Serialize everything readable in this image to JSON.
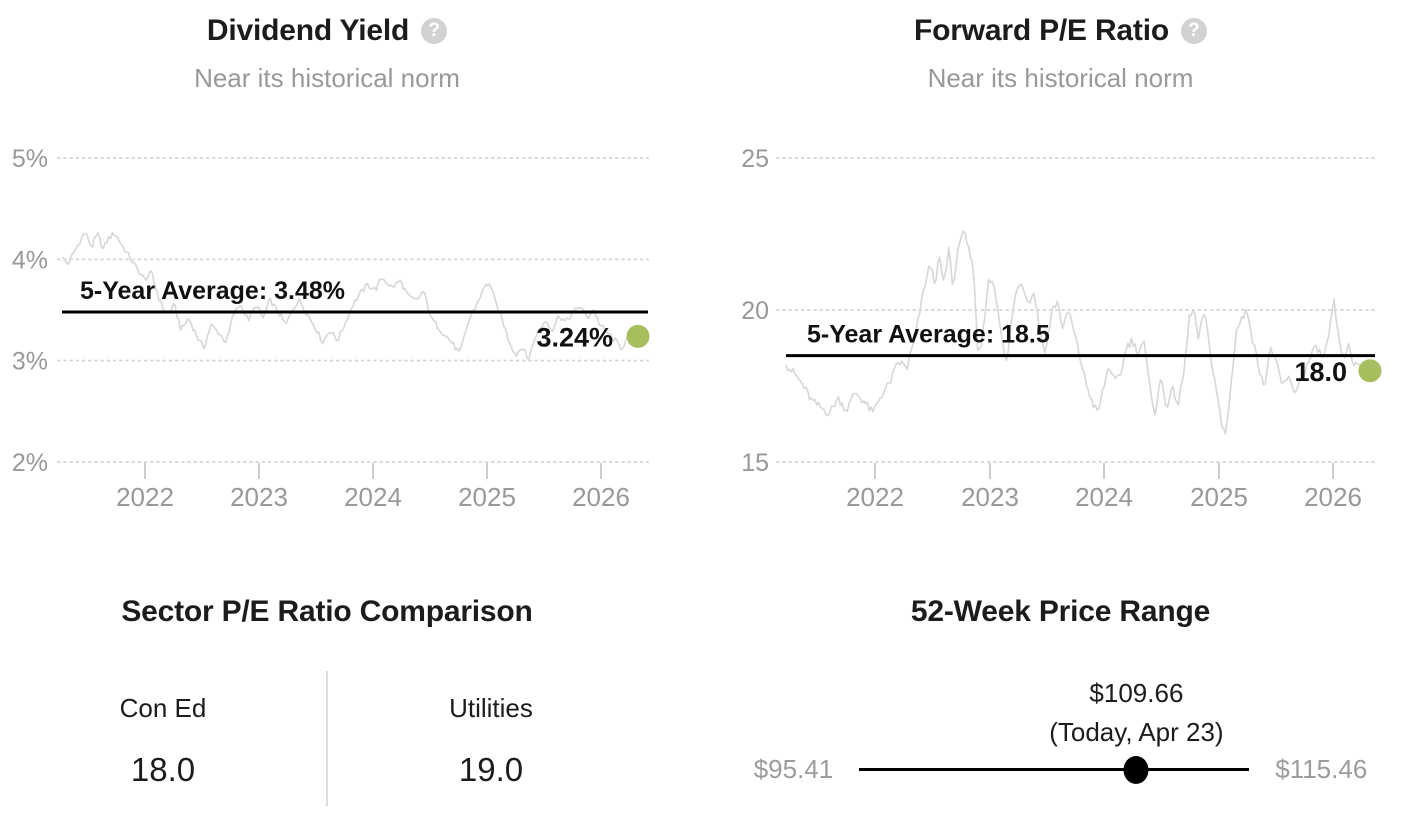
{
  "panels": {
    "dividend": {
      "title": "Dividend Yield",
      "subtitle": "Near its historical norm"
    },
    "pe": {
      "title": "Forward P/E Ratio",
      "subtitle": "Near its historical norm"
    },
    "sector": {
      "title": "Sector P/E Ratio Comparison",
      "items": [
        {
          "name": "Con Ed",
          "value": "18.0"
        },
        {
          "name": "Utilities",
          "value": "19.0"
        }
      ]
    },
    "range": {
      "title": "52-Week Price Range",
      "current_label": "$109.66",
      "current_sublabel": "(Today, Apr 23)",
      "low_label": "$95.41",
      "high_label": "$115.46",
      "low": 95.41,
      "high": 115.46,
      "current": 109.66
    }
  },
  "icons": {
    "help": {
      "name": "question-mark-icon",
      "glyph": "?"
    }
  },
  "colors": {
    "accent_dot": "#a6be5e",
    "series_line": "#d7d7d7",
    "grid_dots": "#d8d8d8",
    "tick_mark": "#cccccc",
    "axis_text": "#999999",
    "average_line": "#000000",
    "dark_text": "#111111"
  },
  "chart_data": [
    {
      "type": "line",
      "title": "Dividend Yield",
      "subtitle": "Near its historical norm",
      "ylim": [
        2,
        5
      ],
      "y_ticks": [
        {
          "v": 5,
          "label": "5%"
        },
        {
          "v": 4,
          "label": "4%"
        },
        {
          "v": 3,
          "label": "3%"
        },
        {
          "v": 2,
          "label": "2%"
        }
      ],
      "x_ticks": [
        "2022",
        "2023",
        "2024",
        "2025",
        "2026"
      ],
      "grid": "dotted-horizontal",
      "legend": "none",
      "average": 3.48,
      "average_label": "5-Year Average: 3.48%",
      "current": 3.24,
      "current_label": "3.24%",
      "jitter": 0.028,
      "series": [
        [
          0,
          4.02
        ],
        [
          0.01,
          3.95
        ],
        [
          0.022,
          4.08
        ],
        [
          0.04,
          4.27
        ],
        [
          0.052,
          4.12
        ],
        [
          0.062,
          4.25
        ],
        [
          0.072,
          4.1
        ],
        [
          0.08,
          4.2
        ],
        [
          0.092,
          4.26
        ],
        [
          0.109,
          4.1
        ],
        [
          0.126,
          3.95
        ],
        [
          0.144,
          3.8
        ],
        [
          0.156,
          3.87
        ],
        [
          0.17,
          3.6
        ],
        [
          0.183,
          3.45
        ],
        [
          0.196,
          3.55
        ],
        [
          0.208,
          3.3
        ],
        [
          0.221,
          3.42
        ],
        [
          0.235,
          3.25
        ],
        [
          0.247,
          3.12
        ],
        [
          0.26,
          3.35
        ],
        [
          0.273,
          3.28
        ],
        [
          0.287,
          3.18
        ],
        [
          0.299,
          3.45
        ],
        [
          0.311,
          3.56
        ],
        [
          0.325,
          3.4
        ],
        [
          0.339,
          3.55
        ],
        [
          0.351,
          3.42
        ],
        [
          0.363,
          3.6
        ],
        [
          0.377,
          3.48
        ],
        [
          0.391,
          3.35
        ],
        [
          0.403,
          3.52
        ],
        [
          0.415,
          3.6
        ],
        [
          0.429,
          3.45
        ],
        [
          0.443,
          3.32
        ],
        [
          0.455,
          3.18
        ],
        [
          0.467,
          3.3
        ],
        [
          0.481,
          3.2
        ],
        [
          0.495,
          3.38
        ],
        [
          0.507,
          3.55
        ],
        [
          0.519,
          3.65
        ],
        [
          0.533,
          3.75
        ],
        [
          0.547,
          3.7
        ],
        [
          0.559,
          3.82
        ],
        [
          0.576,
          3.72
        ],
        [
          0.59,
          3.79
        ],
        [
          0.606,
          3.62
        ],
        [
          0.619,
          3.59
        ],
        [
          0.631,
          3.69
        ],
        [
          0.645,
          3.41
        ],
        [
          0.666,
          3.27
        ],
        [
          0.68,
          3.18
        ],
        [
          0.694,
          3.07
        ],
        [
          0.711,
          3.41
        ],
        [
          0.723,
          3.55
        ],
        [
          0.737,
          3.72
        ],
        [
          0.746,
          3.77
        ],
        [
          0.758,
          3.55
        ],
        [
          0.766,
          3.44
        ],
        [
          0.78,
          3.2
        ],
        [
          0.792,
          3.05
        ],
        [
          0.804,
          3.15
        ],
        [
          0.813,
          3.0
        ],
        [
          0.827,
          3.25
        ],
        [
          0.844,
          3.4
        ],
        [
          0.856,
          3.3
        ],
        [
          0.867,
          3.45
        ],
        [
          0.879,
          3.38
        ],
        [
          0.893,
          3.48
        ],
        [
          0.905,
          3.54
        ],
        [
          0.917,
          3.42
        ],
        [
          0.927,
          3.51
        ],
        [
          0.939,
          3.35
        ],
        [
          0.951,
          3.28
        ],
        [
          0.965,
          3.2
        ],
        [
          0.977,
          3.12
        ],
        [
          0.986,
          3.22
        ],
        [
          1,
          3.24
        ]
      ]
    },
    {
      "type": "line",
      "title": "Forward P/E Ratio",
      "subtitle": "Near its historical norm",
      "ylim": [
        15,
        25
      ],
      "y_ticks": [
        {
          "v": 25,
          "label": "25"
        },
        {
          "v": 20,
          "label": "20"
        },
        {
          "v": 15,
          "label": "15"
        }
      ],
      "x_ticks": [
        "2022",
        "2023",
        "2024",
        "2025",
        "2026"
      ],
      "grid": "dotted-horizontal",
      "legend": "none",
      "average": 18.5,
      "average_label": "5-Year Average: 18.5",
      "current": 18.0,
      "current_label": "18.0",
      "jitter": 0.14,
      "series": [
        [
          0,
          18.2
        ],
        [
          0.015,
          17.9
        ],
        [
          0.03,
          17.5
        ],
        [
          0.045,
          17.0
        ],
        [
          0.06,
          16.8
        ],
        [
          0.075,
          16.6
        ],
        [
          0.09,
          17.1
        ],
        [
          0.105,
          16.7
        ],
        [
          0.12,
          17.3
        ],
        [
          0.135,
          17.0
        ],
        [
          0.15,
          16.6
        ],
        [
          0.165,
          17.2
        ],
        [
          0.18,
          17.6
        ],
        [
          0.195,
          18.3
        ],
        [
          0.21,
          18.1
        ],
        [
          0.225,
          19.2
        ],
        [
          0.24,
          20.8
        ],
        [
          0.25,
          21.5
        ],
        [
          0.258,
          20.9
        ],
        [
          0.266,
          21.7
        ],
        [
          0.274,
          20.8
        ],
        [
          0.282,
          22.0
        ],
        [
          0.29,
          20.7
        ],
        [
          0.3,
          22.3
        ],
        [
          0.306,
          22.5
        ],
        [
          0.315,
          22.3
        ],
        [
          0.325,
          21.2
        ],
        [
          0.333,
          18.4
        ],
        [
          0.34,
          19.0
        ],
        [
          0.35,
          20.9
        ],
        [
          0.358,
          21.0
        ],
        [
          0.366,
          20.3
        ],
        [
          0.374,
          19.0
        ],
        [
          0.382,
          18.2
        ],
        [
          0.39,
          19.5
        ],
        [
          0.4,
          20.8
        ],
        [
          0.41,
          20.9
        ],
        [
          0.42,
          20.2
        ],
        [
          0.43,
          20.6
        ],
        [
          0.44,
          19.3
        ],
        [
          0.45,
          18.6
        ],
        [
          0.46,
          19.9
        ],
        [
          0.47,
          20.3
        ],
        [
          0.48,
          19.4
        ],
        [
          0.49,
          20.0
        ],
        [
          0.5,
          19.2
        ],
        [
          0.51,
          18.4
        ],
        [
          0.52,
          17.6
        ],
        [
          0.53,
          17.0
        ],
        [
          0.54,
          16.6
        ],
        [
          0.55,
          17.4
        ],
        [
          0.56,
          18.2
        ],
        [
          0.57,
          17.6
        ],
        [
          0.58,
          17.9
        ],
        [
          0.59,
          18.8
        ],
        [
          0.6,
          19.0
        ],
        [
          0.61,
          18.6
        ],
        [
          0.62,
          19.0
        ],
        [
          0.63,
          17.5
        ],
        [
          0.64,
          16.6
        ],
        [
          0.65,
          17.8
        ],
        [
          0.66,
          16.8
        ],
        [
          0.67,
          17.4
        ],
        [
          0.68,
          16.9
        ],
        [
          0.69,
          18.0
        ],
        [
          0.7,
          19.9
        ],
        [
          0.707,
          20.0
        ],
        [
          0.715,
          19.0
        ],
        [
          0.725,
          20.0
        ],
        [
          0.735,
          18.6
        ],
        [
          0.745,
          17.5
        ],
        [
          0.755,
          16.2
        ],
        [
          0.762,
          15.9
        ],
        [
          0.77,
          17.3
        ],
        [
          0.78,
          19.3
        ],
        [
          0.79,
          19.7
        ],
        [
          0.8,
          20.0
        ],
        [
          0.81,
          18.9
        ],
        [
          0.82,
          18.1
        ],
        [
          0.83,
          17.5
        ],
        [
          0.84,
          18.8
        ],
        [
          0.85,
          18.2
        ],
        [
          0.86,
          17.5
        ],
        [
          0.87,
          17.8
        ],
        [
          0.88,
          17.3
        ],
        [
          0.89,
          17.6
        ],
        [
          0.9,
          18.0
        ],
        [
          0.91,
          18.5
        ],
        [
          0.92,
          18.8
        ],
        [
          0.93,
          18.4
        ],
        [
          0.94,
          19.0
        ],
        [
          0.95,
          20.3
        ],
        [
          0.957,
          19.1
        ],
        [
          0.965,
          18.4
        ],
        [
          0.975,
          18.8
        ],
        [
          0.985,
          18.2
        ],
        [
          1,
          18.0
        ]
      ]
    }
  ]
}
